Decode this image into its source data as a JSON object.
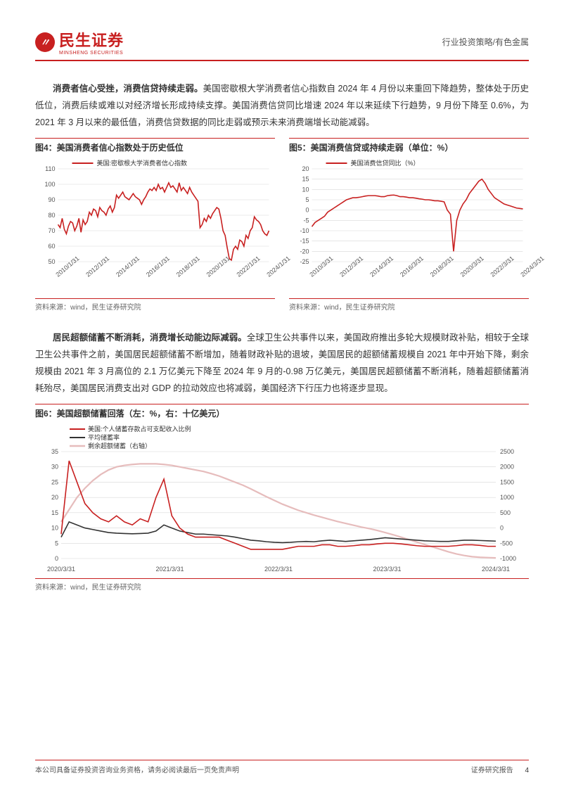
{
  "header": {
    "logo_cn": "民生证券",
    "logo_en": "MINSHENG SECURITIES",
    "right": "行业投资策略/有色金属"
  },
  "para1_lead": "消费者信心受挫，消费信贷持续走弱。",
  "para1_body": "美国密歇根大学消费者信心指数自 2024 年 4 月份以来重回下降趋势，整体处于历史低位，消费后续或难以对经济增长形成持续支撑。美国消费信贷同比增速 2024 年以来延续下行趋势，9 月份下降至 0.6%，为 2021 年 3 月以来的最低值，消费信贷数据的同比走弱或预示未来消费端增长动能减弱。",
  "chart4": {
    "title": "图4：美国消费者信心指数处于历史低位",
    "source": "资料来源：wind，民生证券研究院",
    "legend": "美国:密歇根大学消费者信心指数",
    "ylim": [
      50,
      110
    ],
    "ytick_step": 10,
    "xlabels": [
      "2010/1/31",
      "2012/1/31",
      "2014/1/31",
      "2016/1/31",
      "2018/1/31",
      "2020/1/31",
      "2022/1/31",
      "2024/1/31"
    ],
    "series_color": "#c82020",
    "grid_color": "#d8d8d8",
    "background_color": "#ffffff",
    "line_width": 1.6,
    "label_fontsize": 9,
    "values": [
      74,
      72,
      78,
      71,
      68,
      73,
      76,
      75,
      70,
      73,
      78,
      69,
      77,
      74,
      76,
      82,
      80,
      84,
      83,
      79,
      85,
      83,
      82,
      80,
      84,
      86,
      82,
      85,
      93,
      91,
      93,
      95,
      92,
      91,
      90,
      92,
      94,
      92,
      91,
      90,
      87,
      90,
      92,
      95,
      97,
      96,
      98,
      96,
      100,
      97,
      98,
      95,
      98,
      101,
      98,
      99,
      97,
      95,
      101,
      96,
      98,
      96,
      94,
      98,
      95,
      93,
      91,
      89,
      72,
      74,
      78,
      76,
      80,
      78,
      81,
      83,
      85,
      84,
      78,
      70,
      67,
      59,
      52,
      51,
      58,
      60,
      58,
      64,
      63,
      60,
      67,
      65,
      70,
      72,
      79,
      77,
      76,
      74,
      70,
      68,
      67,
      70
    ]
  },
  "chart5": {
    "title": "图5：美国消费信贷或持续走弱（单位：%）",
    "source": "资料来源：wind，民生证券研究院",
    "legend": "美国消费信贷同比（%）",
    "ylim": [
      -25,
      20
    ],
    "ytick_step": 5,
    "xlabels": [
      "2010/3/31",
      "2012/3/31",
      "2014/3/31",
      "2016/3/31",
      "2018/3/31",
      "2020/3/31",
      "2022/3/31",
      "2024/3/31"
    ],
    "series_color": "#c82020",
    "grid_color": "#d8d8d8",
    "background_color": "#ffffff",
    "line_width": 1.6,
    "label_fontsize": 9,
    "values": [
      -8,
      -6,
      -5,
      -4,
      -3,
      -1,
      0,
      1,
      2,
      3,
      4,
      5,
      5.5,
      6,
      6,
      6.2,
      6.5,
      6.8,
      7,
      7,
      7,
      6.8,
      6.5,
      6.5,
      7,
      7.2,
      7.3,
      7,
      6.5,
      6.5,
      6.3,
      6,
      6,
      5.8,
      5.5,
      5.3,
      5,
      5,
      4.8,
      4.5,
      4.5,
      4.3,
      4,
      0,
      -2,
      -20,
      -5,
      0,
      3,
      5,
      8,
      10,
      12,
      14,
      15,
      13,
      10,
      8,
      6,
      5,
      4,
      3,
      2.5,
      2,
      1.5,
      1,
      0.8,
      0.6
    ]
  },
  "para2_lead": "居民超额储蓄不断消耗，消费增长动能边际减弱。",
  "para2_body": "全球卫生公共事件以来，美国政府推出多轮大规模财政补贴，相较于全球卫生公共事件之前，美国居民超额储蓄不断增加，随着财政补贴的退坡，美国居民的超额储蓄规模自 2021 年中开始下降，剩余规模由 2021 年 3 月高位的 2.1 万亿美元下降至 2024 年 9 月的-0.98 万亿美元，美国居民超额储蓄不断消耗，随着超额储蓄消耗殆尽，美国居民消费支出对 GDP 的拉动效应也将减弱，美国经济下行压力也将逐步显现。",
  "chart6": {
    "title": "图6：美国超额储蓄回落（左：%，右：十亿美元）",
    "source": "资料来源：wind，民生证券研究院",
    "legend1": "美国:个人储蓄存款占可支配收入比例",
    "legend2": "平均储蓄率",
    "legend3": "剩余超额储蓄（右轴）",
    "color1": "#c82020",
    "color2": "#333333",
    "color3": "#e6bcbc",
    "ylim_left": [
      0,
      35
    ],
    "ytick_left_step": 5,
    "ylim_right": [
      -1000,
      2500
    ],
    "ytick_right_step": 500,
    "xlabels": [
      "2020/3/31",
      "2021/3/31",
      "2022/3/31",
      "2023/3/31",
      "2024/3/31"
    ],
    "grid_color": "#d8d8d8",
    "background_color": "#ffffff",
    "line_width": 1.6,
    "label_fontsize": 9,
    "series1": [
      8,
      32,
      25,
      18,
      15,
      13,
      12,
      14,
      12,
      11,
      13,
      12,
      20,
      26,
      14,
      10,
      8,
      7,
      7,
      7,
      7,
      6,
      5,
      4,
      3,
      3,
      3,
      3,
      3,
      3.5,
      4,
      4,
      4,
      4.5,
      4.5,
      4,
      4,
      4.2,
      4.5,
      4.5,
      4.8,
      5,
      5,
      4.8,
      4.5,
      4.2,
      4,
      4,
      4,
      4,
      4.2,
      4.5,
      4.5,
      4.3,
      4,
      4
    ],
    "series2": [
      7,
      12,
      11,
      10,
      9.5,
      9,
      8.5,
      8.3,
      8.2,
      8.1,
      8.2,
      8.3,
      9,
      11,
      10,
      9,
      8.5,
      8,
      8,
      7.8,
      7.6,
      7.4,
      7,
      6.5,
      6,
      5.8,
      5.5,
      5.3,
      5.2,
      5.3,
      5.5,
      5.6,
      5.5,
      5.8,
      6,
      5.8,
      5.6,
      5.8,
      6,
      6.2,
      6.5,
      6.8,
      6.6,
      6.4,
      6.2,
      6,
      5.8,
      5.7,
      5.6,
      5.6,
      5.8,
      6,
      6,
      5.9,
      5.8,
      5.7
    ],
    "series3": [
      200,
      600,
      1000,
      1300,
      1550,
      1750,
      1900,
      2000,
      2050,
      2080,
      2100,
      2100,
      2100,
      2080,
      2050,
      2000,
      1950,
      1900,
      1850,
      1780,
      1700,
      1600,
      1500,
      1400,
      1280,
      1150,
      1020,
      900,
      780,
      680,
      580,
      500,
      420,
      350,
      280,
      210,
      150,
      90,
      30,
      -20,
      -80,
      -150,
      -220,
      -300,
      -380,
      -460,
      -540,
      -620,
      -700,
      -780,
      -850,
      -900,
      -940,
      -960,
      -970,
      -980
    ]
  },
  "footer": {
    "left": "本公司具备证券投资咨询业务资格，请务必阅读最后一页免责声明",
    "right_label": "证券研究报告",
    "page": "4"
  }
}
